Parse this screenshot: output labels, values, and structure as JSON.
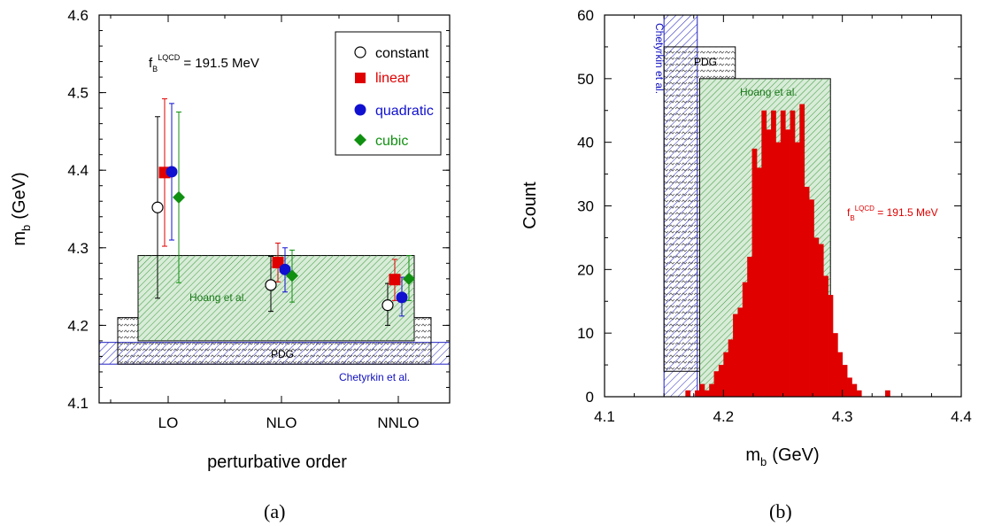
{
  "colors": {
    "constant": "#000000",
    "linear": "#e00000",
    "quadratic": "#1010d0",
    "cubic": "#109010",
    "hoang_fill": "#d8ecd8",
    "hoang_hatch": "#3a9a3a",
    "pdg_hatch": "#444444",
    "chetyrkin_hatch": "#2020c0",
    "histogram": "#e00000"
  },
  "panel_a": {
    "caption": "(a)",
    "xlabel": "perturbative order",
    "ylabel_main": "m",
    "ylabel_sub": "b",
    "ylabel_unit": "(GeV)",
    "fb_label": "f",
    "fb_sub": "B",
    "fb_sup": "LQCD",
    "fb_value": " = 191.5 MeV",
    "band_labels": {
      "hoang": "Hoang et al.",
      "pdg": "PDG",
      "chetyrkin": "Chetyrkin et al."
    },
    "legend": [
      "constant",
      "linear",
      "quadratic",
      "cubic"
    ]
  },
  "panel_b": {
    "caption": "(b)",
    "xlabel_main": "m",
    "xlabel_sub": "b",
    "xlabel_unit": "(GeV)",
    "ylabel": "Count",
    "fb_label": "f",
    "fb_sub": "B",
    "fb_sup": "LQCD",
    "fb_value": " = 191.5 MeV",
    "band_labels": {
      "hoang": "Hoang et al.",
      "pdg": "PDG",
      "chetyrkin": "Chetyrkin et al."
    }
  },
  "chart_data": [
    {
      "type": "scatter",
      "title": "",
      "xlabel": "perturbative order",
      "ylabel": "m_b (GeV)",
      "categories": [
        "LO",
        "NLO",
        "NNLO"
      ],
      "ylim": [
        4.1,
        4.6
      ],
      "yticks": [
        "4.1",
        "4.2",
        "4.3",
        "4.4",
        "4.5",
        "4.6"
      ],
      "legend_position": "top-right",
      "series": [
        {
          "name": "constant",
          "marker": "open-circle",
          "values": [
            4.352,
            4.252,
            4.226
          ],
          "err_low": [
            4.235,
            4.218,
            4.2
          ],
          "err_high": [
            4.469,
            4.289,
            4.254
          ]
        },
        {
          "name": "linear",
          "marker": "square",
          "values": [
            4.397,
            4.281,
            4.259
          ],
          "err_low": [
            4.302,
            4.256,
            4.232
          ],
          "err_high": [
            4.492,
            4.306,
            4.285
          ]
        },
        {
          "name": "quadratic",
          "marker": "circle",
          "values": [
            4.398,
            4.272,
            4.236
          ],
          "err_low": [
            4.31,
            4.243,
            4.212
          ],
          "err_high": [
            4.486,
            4.3,
            4.262
          ]
        },
        {
          "name": "cubic",
          "marker": "diamond",
          "values": [
            4.365,
            4.264,
            4.26
          ],
          "err_low": [
            4.255,
            4.23,
            4.232
          ],
          "err_high": [
            4.475,
            4.297,
            4.29
          ]
        }
      ],
      "bands": [
        {
          "name": "Hoang et al.",
          "x_range": [
            "LO",
            "NNLO"
          ],
          "y_range": [
            4.18,
            4.29
          ]
        },
        {
          "name": "PDG",
          "x_range": [
            "LO",
            "NNLO"
          ],
          "y_range": [
            4.15,
            4.21
          ]
        },
        {
          "name": "Chetyrkin et al.",
          "y_range": [
            4.15,
            4.178
          ]
        }
      ],
      "annotation": "f_B^LQCD = 191.5 MeV"
    },
    {
      "type": "bar",
      "title": "",
      "xlabel": "m_b (GeV)",
      "ylabel": "Count",
      "xlim": [
        4.1,
        4.4
      ],
      "ylim": [
        0,
        60
      ],
      "xticks": [
        "4.1",
        "4.2",
        "4.3",
        "4.4"
      ],
      "yticks": [
        "0",
        "10",
        "20",
        "30",
        "40",
        "50",
        "60"
      ],
      "bin_width": 0.004,
      "bin_starts": [
        4.168,
        4.176,
        4.18,
        4.184,
        4.188,
        4.192,
        4.196,
        4.2,
        4.204,
        4.208,
        4.212,
        4.216,
        4.22,
        4.224,
        4.228,
        4.232,
        4.236,
        4.24,
        4.244,
        4.248,
        4.252,
        4.256,
        4.26,
        4.264,
        4.268,
        4.272,
        4.276,
        4.28,
        4.284,
        4.288,
        4.292,
        4.296,
        4.3,
        4.304,
        4.308,
        4.312,
        4.336
      ],
      "values": [
        1,
        1,
        2,
        1,
        2,
        4,
        5,
        7,
        9,
        13,
        14,
        18,
        22,
        39,
        36,
        45,
        42,
        45,
        40,
        45,
        42,
        45,
        40,
        46,
        33,
        31,
        25,
        24,
        19,
        16,
        10,
        7,
        5,
        3,
        2,
        1,
        1
      ],
      "bands": [
        {
          "name": "Hoang et al.",
          "x_range": [
            4.18,
            4.29
          ],
          "height": 50
        },
        {
          "name": "PDG",
          "x_range": [
            4.15,
            4.21
          ],
          "height": 55
        },
        {
          "name": "Chetyrkin et al.",
          "x_range": [
            4.15,
            4.178
          ],
          "height": 60
        }
      ],
      "annotation": "f_B^LQCD = 191.5 MeV"
    }
  ]
}
